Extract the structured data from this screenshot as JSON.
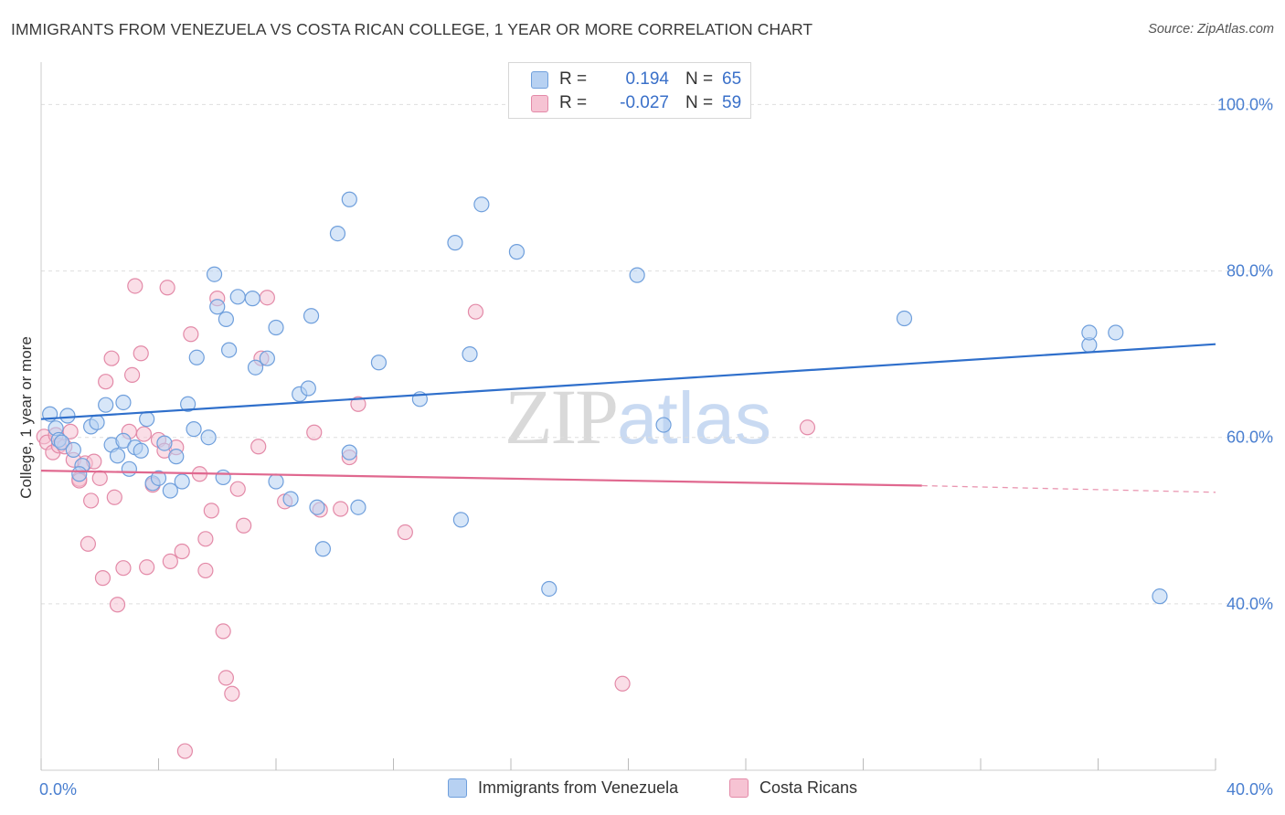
{
  "header": {
    "title": "IMMIGRANTS FROM VENEZUELA VS COSTA RICAN COLLEGE, 1 YEAR OR MORE CORRELATION CHART",
    "source": "Source: ZipAtlas.com"
  },
  "watermark": {
    "zip": "ZIP",
    "atlas": "atlas"
  },
  "legend_stats": {
    "rows": [
      {
        "r_label": "R =",
        "r_value": "0.194",
        "n_label": "N =",
        "n_value": "65"
      },
      {
        "r_label": "R =",
        "r_value": "-0.027",
        "n_label": "N =",
        "n_value": "59"
      }
    ]
  },
  "colors": {
    "blue_fill": "#b7d1f2",
    "blue_stroke": "#6f9fdc",
    "blue_line": "#2f6fcb",
    "pink_fill": "#f6c3d3",
    "pink_stroke": "#e38aa8",
    "pink_line": "#e0688f",
    "grid": "#dedede",
    "axis_label": "#4a7fd0"
  },
  "chart_data": {
    "type": "scatter",
    "title": "IMMIGRANTS FROM VENEZUELA VS COSTA RICAN COLLEGE, 1 YEAR OR MORE CORRELATION CHART",
    "xlabel": "",
    "ylabel": "College, 1 year or more",
    "xlim": [
      0,
      40
    ],
    "ylim": [
      20,
      104
    ],
    "x_tick_labels": [
      {
        "value": 0,
        "label": "0.0%"
      },
      {
        "value": 40,
        "label": "40.0%"
      }
    ],
    "y_tick_labels": [
      {
        "value": 100,
        "label": "100.0%"
      },
      {
        "value": 80,
        "label": "80.0%"
      },
      {
        "value": 60,
        "label": "60.0%"
      },
      {
        "value": 40,
        "label": "40.0%"
      }
    ],
    "y_gridlines": [
      100,
      80,
      60,
      40
    ],
    "grid": true,
    "legend_position": "top-center",
    "series": [
      {
        "name": "Immigrants from Venezuela",
        "color": "#b7d1f2",
        "R": 0.194,
        "N": 65,
        "trend": {
          "x": [
            0,
            40
          ],
          "y": [
            62.2,
            71.2
          ]
        },
        "points": [
          [
            0.3,
            62.8
          ],
          [
            0.5,
            61.1
          ],
          [
            0.6,
            59.7
          ],
          [
            0.7,
            59.4
          ],
          [
            0.9,
            62.6
          ],
          [
            1.1,
            58.5
          ],
          [
            1.4,
            56.6
          ],
          [
            1.3,
            55.6
          ],
          [
            1.7,
            61.3
          ],
          [
            1.9,
            61.8
          ],
          [
            2.2,
            63.9
          ],
          [
            2.4,
            59.1
          ],
          [
            2.6,
            57.8
          ],
          [
            2.8,
            59.6
          ],
          [
            2.8,
            64.2
          ],
          [
            3.0,
            56.2
          ],
          [
            3.2,
            58.8
          ],
          [
            3.4,
            58.4
          ],
          [
            3.6,
            62.2
          ],
          [
            3.8,
            54.5
          ],
          [
            4.0,
            55.1
          ],
          [
            4.2,
            59.3
          ],
          [
            4.4,
            53.6
          ],
          [
            4.6,
            57.7
          ],
          [
            4.8,
            54.7
          ],
          [
            5.0,
            64.0
          ],
          [
            5.2,
            61.0
          ],
          [
            5.3,
            69.6
          ],
          [
            5.7,
            60.0
          ],
          [
            5.9,
            79.6
          ],
          [
            6.0,
            75.7
          ],
          [
            6.2,
            55.2
          ],
          [
            6.3,
            74.2
          ],
          [
            6.4,
            70.5
          ],
          [
            6.7,
            76.9
          ],
          [
            7.2,
            76.7
          ],
          [
            7.3,
            68.4
          ],
          [
            7.7,
            69.5
          ],
          [
            8.0,
            73.2
          ],
          [
            8.0,
            54.7
          ],
          [
            8.5,
            52.6
          ],
          [
            8.8,
            65.2
          ],
          [
            9.1,
            65.9
          ],
          [
            9.2,
            74.6
          ],
          [
            9.4,
            51.6
          ],
          [
            9.6,
            46.6
          ],
          [
            10.1,
            84.5
          ],
          [
            10.5,
            88.6
          ],
          [
            10.5,
            58.2
          ],
          [
            10.8,
            51.6
          ],
          [
            11.5,
            69.0
          ],
          [
            12.9,
            64.6
          ],
          [
            14.1,
            83.4
          ],
          [
            14.3,
            50.1
          ],
          [
            14.6,
            70.0
          ],
          [
            15.0,
            88.0
          ],
          [
            16.2,
            82.3
          ],
          [
            17.3,
            41.8
          ],
          [
            20.3,
            79.5
          ],
          [
            21.2,
            61.5
          ],
          [
            29.4,
            74.3
          ],
          [
            35.7,
            71.1
          ],
          [
            35.7,
            72.6
          ],
          [
            36.6,
            72.6
          ],
          [
            38.1,
            40.9
          ]
        ]
      },
      {
        "name": "Costa Ricans",
        "color": "#f6c3d3",
        "R": -0.027,
        "N": 59,
        "trend": {
          "x": [
            0,
            30
          ],
          "y": [
            56.0,
            54.2
          ],
          "dashed_x": [
            30,
            40
          ],
          "dashed_y": [
            54.2,
            53.4
          ]
        },
        "points": [
          [
            0.1,
            60.1
          ],
          [
            0.2,
            59.4
          ],
          [
            0.4,
            58.2
          ],
          [
            0.5,
            60.3
          ],
          [
            0.6,
            59.0
          ],
          [
            0.8,
            58.9
          ],
          [
            1.0,
            60.7
          ],
          [
            1.1,
            57.3
          ],
          [
            1.3,
            55.0
          ],
          [
            1.3,
            54.8
          ],
          [
            1.5,
            56.9
          ],
          [
            1.6,
            47.2
          ],
          [
            1.7,
            52.4
          ],
          [
            1.8,
            57.1
          ],
          [
            2.0,
            55.1
          ],
          [
            2.1,
            43.1
          ],
          [
            2.2,
            66.7
          ],
          [
            2.4,
            69.5
          ],
          [
            2.5,
            52.8
          ],
          [
            2.6,
            39.9
          ],
          [
            2.8,
            44.3
          ],
          [
            3.0,
            60.7
          ],
          [
            3.1,
            67.5
          ],
          [
            3.2,
            78.2
          ],
          [
            3.4,
            70.1
          ],
          [
            3.5,
            60.4
          ],
          [
            3.6,
            44.4
          ],
          [
            3.8,
            54.3
          ],
          [
            4.0,
            59.7
          ],
          [
            4.2,
            58.4
          ],
          [
            4.3,
            78.0
          ],
          [
            4.4,
            45.1
          ],
          [
            4.6,
            58.8
          ],
          [
            4.8,
            46.3
          ],
          [
            4.9,
            22.3
          ],
          [
            5.1,
            72.4
          ],
          [
            5.4,
            55.6
          ],
          [
            5.6,
            47.8
          ],
          [
            5.6,
            44.0
          ],
          [
            5.8,
            51.2
          ],
          [
            6.0,
            76.7
          ],
          [
            6.2,
            36.7
          ],
          [
            6.3,
            31.1
          ],
          [
            6.5,
            29.2
          ],
          [
            6.7,
            53.8
          ],
          [
            6.9,
            49.4
          ],
          [
            7.4,
            58.9
          ],
          [
            7.5,
            69.5
          ],
          [
            7.7,
            76.8
          ],
          [
            8.3,
            52.3
          ],
          [
            9.3,
            60.6
          ],
          [
            9.5,
            51.3
          ],
          [
            10.2,
            51.4
          ],
          [
            10.5,
            57.6
          ],
          [
            10.8,
            64.0
          ],
          [
            12.4,
            48.6
          ],
          [
            14.8,
            75.1
          ],
          [
            19.8,
            30.4
          ],
          [
            26.1,
            61.2
          ]
        ]
      }
    ]
  },
  "bottom_legend": {
    "items": [
      {
        "label": "Immigrants from Venezuela"
      },
      {
        "label": "Costa Ricans"
      }
    ]
  }
}
